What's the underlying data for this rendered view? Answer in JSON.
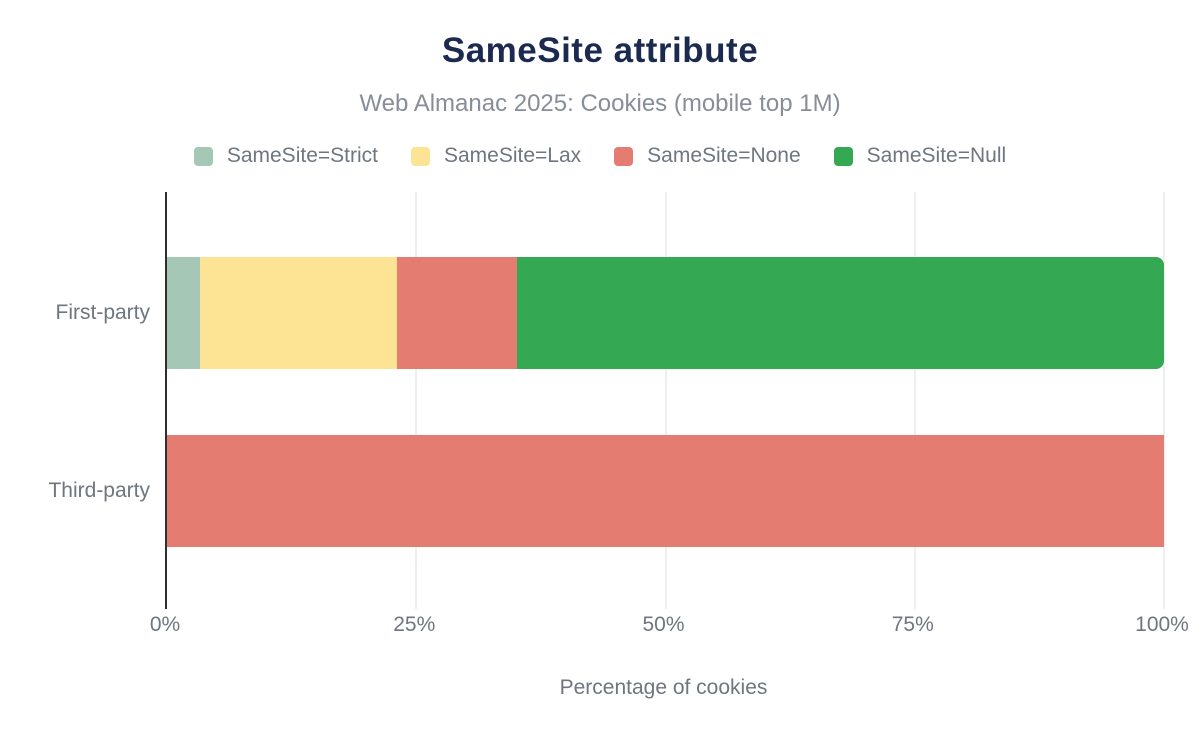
{
  "chart_data": {
    "type": "bar",
    "orientation": "horizontal",
    "stacked": true,
    "title": "SameSite attribute",
    "subtitle": "Web Almanac 2025: Cookies (mobile top 1M)",
    "categories": [
      "First-party",
      "Third-party"
    ],
    "series": [
      {
        "name": "SameSite=Strict",
        "color": "#a4c8b5",
        "values": [
          3.3,
          0
        ]
      },
      {
        "name": "SameSite=Lax",
        "color": "#fde394",
        "values": [
          19.8,
          0
        ]
      },
      {
        "name": "SameSite=None",
        "color": "#e57c72",
        "values": [
          12.0,
          100
        ]
      },
      {
        "name": "SameSite=Null",
        "color": "#34a853",
        "values": [
          64.9,
          0
        ]
      }
    ],
    "xlabel": "Percentage of cookies",
    "ylabel": "",
    "xlim": [
      0,
      100
    ],
    "x_ticks": [
      "0%",
      "25%",
      "50%",
      "75%",
      "100%"
    ],
    "grid": "vertical",
    "legend_position": "top"
  },
  "colors": {
    "title": "#1b2a4e",
    "subtitle": "#868e99",
    "axis_text": "#6e7680",
    "axis_line": "#2f2f2f",
    "gridline": "#efefef",
    "background": "#ffffff"
  }
}
